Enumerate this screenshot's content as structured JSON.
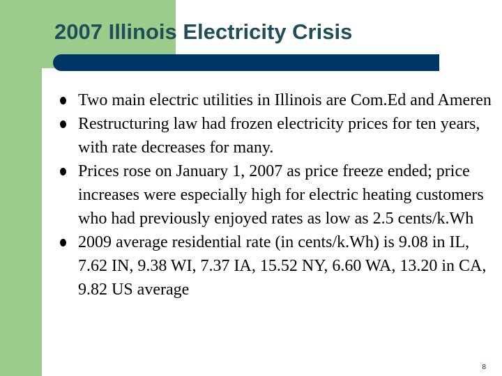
{
  "slide": {
    "title": "2007 Illinois Electricity Crisis",
    "bullets": [
      "Two main electric utilities in Illinois are Com.Ed and Ameren",
      "Restructuring law had frozen electricity prices for ten years, with rate decreases for many.",
      "Prices rose on January 1, 2007 as price freeze ended; price increases were especially high for electric heating customers who had previously enjoyed rates as low as 2.5 cents/k.Wh",
      "2009 average residential rate (in cents/k.Wh) is 9.08 in IL, 7.62 IN, 9.38 WI,  7.37 IA, 15.52 NY, 6.60 WA, 13.20 in CA, 9.82 US average"
    ],
    "page_number": "8"
  },
  "colors": {
    "accent_green": "#9ccc8c",
    "title_bar": "#003366",
    "title_text": "#1f4e5a"
  }
}
